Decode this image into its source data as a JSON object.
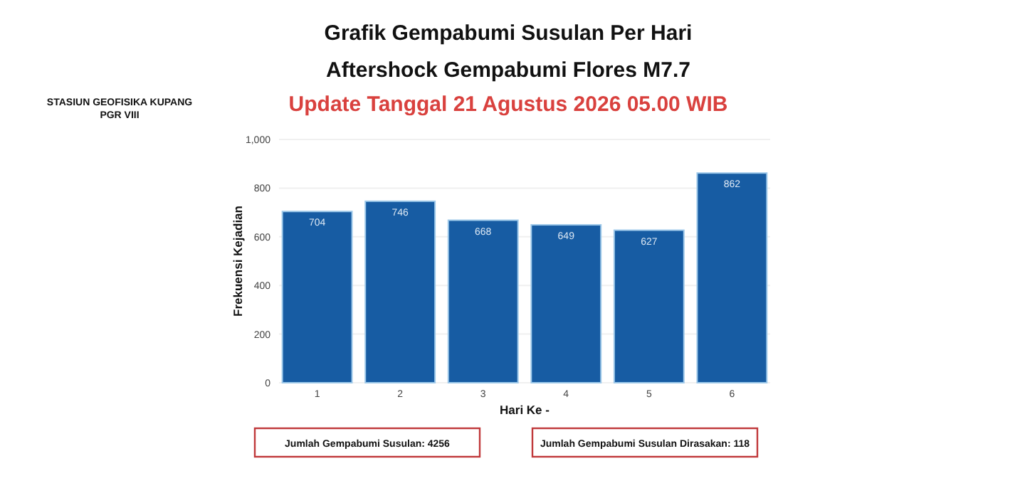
{
  "chart_data": {
    "type": "bar",
    "title": "Grafik Gempabumi Susulan Per Hari",
    "subtitle": "Aftershock Gempabumi Flores M7.7",
    "xlabel": "Hari Ke -",
    "ylabel": "Frekuensi Kejadian",
    "categories": [
      "1",
      "2",
      "3",
      "4",
      "5",
      "6"
    ],
    "values": [
      704,
      746,
      668,
      649,
      627,
      862
    ],
    "color": "#175ca3",
    "ylim": [
      0,
      1000
    ],
    "yticks": [
      0,
      200,
      400,
      600,
      800,
      {
        "value": 1000,
        "label": "1,000"
      }
    ],
    "grid": "y",
    "data_labels": true,
    "annotations": [
      "Update Tanggal 21 Agustus 2026 05.00 WIB",
      "STASIUN GEOFISIKA KUPANG",
      "PGR VIII",
      "Jumlah Gempabumi Susulan: 4256",
      "Jumlah Gempabumi Susulan Dirasakan: 118"
    ]
  }
}
